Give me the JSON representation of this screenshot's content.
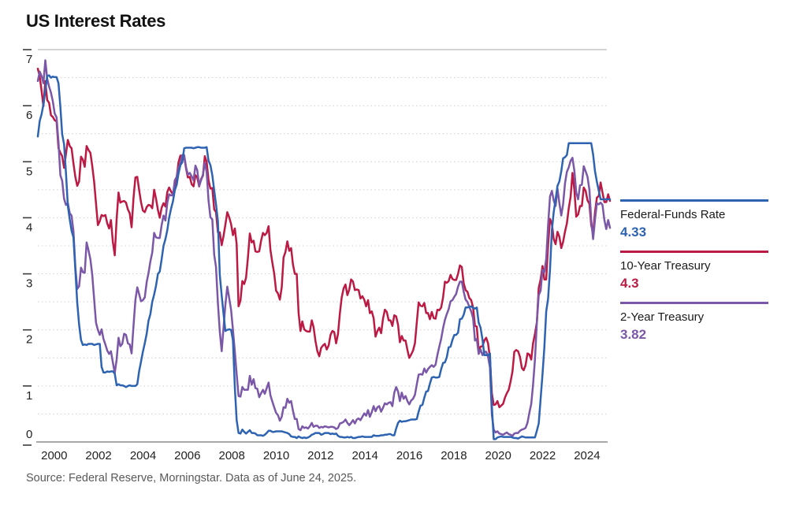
{
  "title": "US Interest Rates",
  "source": "Source: Federal Reserve, Morningstar. Data as of June 24, 2025.",
  "legend": {
    "entries": [
      {
        "label": "Federal-Funds Rate",
        "value": "4.33",
        "color": "#2E63B2"
      },
      {
        "label": "10-Year Treasury",
        "value": "4.3",
        "color": "#BB1A44"
      },
      {
        "label": "2-Year Treasury",
        "value": "3.82",
        "color": "#7B57A8"
      }
    ]
  },
  "chart_data": {
    "type": "line",
    "title": "US Interest Rates",
    "xlabel": "",
    "ylabel": "",
    "x_range": [
      2000.0,
      2025.45
    ],
    "ylim": [
      0,
      7
    ],
    "y_ticks": [
      7,
      6,
      5,
      4,
      3,
      2,
      1,
      0
    ],
    "x_ticks": [
      2000,
      2002,
      2004,
      2006,
      2008,
      2010,
      2012,
      2014,
      2016,
      2018,
      2020,
      2022,
      2024
    ],
    "grid": {
      "dotted_interval": 0.5,
      "top_solid_line_at": 7,
      "baseline_at": 0
    },
    "legend_position": "right",
    "x_start": 2000.0,
    "x_step": 0.0833333,
    "series": [
      {
        "name": "10-Year Treasury",
        "color": "#BB1A44",
        "values": [
          6.66,
          6.52,
          6.26,
          5.99,
          6.44,
          6.1,
          6.05,
          5.83,
          5.8,
          5.74,
          5.72,
          5.24,
          5.16,
          5.1,
          4.89,
          5.14,
          5.39,
          5.28,
          5.24,
          4.97,
          4.73,
          4.57,
          4.65,
          5.09,
          5.04,
          4.91,
          5.28,
          5.21,
          5.16,
          4.93,
          4.65,
          4.26,
          3.87,
          3.94,
          4.05,
          4.03,
          4.05,
          3.9,
          3.81,
          3.96,
          3.57,
          3.33,
          3.98,
          4.45,
          4.27,
          4.29,
          4.3,
          4.27,
          4.15,
          4.08,
          3.83,
          4.35,
          4.72,
          4.73,
          4.5,
          4.28,
          4.13,
          4.1,
          4.19,
          4.23,
          4.22,
          4.17,
          4.5,
          4.34,
          4.14,
          4.0,
          4.18,
          4.26,
          4.2,
          4.46,
          4.54,
          4.47,
          4.42,
          4.57,
          4.72,
          4.99,
          5.11,
          5.11,
          5.09,
          4.88,
          4.72,
          4.73,
          4.6,
          4.56,
          4.76,
          4.72,
          4.56,
          4.69,
          4.75,
          5.1,
          5.0,
          4.67,
          4.52,
          4.53,
          4.15,
          4.1,
          3.74,
          3.74,
          3.51,
          3.68,
          3.88,
          4.1,
          4.01,
          3.89,
          3.69,
          3.81,
          3.53,
          2.42,
          2.52,
          2.87,
          2.82,
          2.93,
          3.29,
          3.72,
          3.56,
          3.59,
          3.4,
          3.39,
          3.4,
          3.59,
          3.73,
          3.69,
          3.73,
          3.85,
          3.42,
          3.2,
          3.01,
          2.7,
          2.65,
          2.54,
          2.76,
          3.29,
          3.39,
          3.58,
          3.41,
          3.46,
          3.17,
          3.0,
          3.0,
          2.3,
          1.98,
          2.15,
          2.01,
          1.98,
          1.97,
          1.97,
          2.17,
          2.05,
          1.8,
          1.62,
          1.53,
          1.68,
          1.72,
          1.75,
          1.65,
          1.72,
          1.91,
          1.98,
          1.96,
          1.76,
          1.93,
          2.3,
          2.58,
          2.74,
          2.81,
          2.62,
          2.72,
          2.9,
          2.86,
          2.71,
          2.72,
          2.71,
          2.56,
          2.6,
          2.54,
          2.42,
          2.53,
          2.3,
          2.33,
          2.21,
          1.88,
          1.98,
          2.04,
          1.94,
          2.2,
          2.36,
          2.32,
          2.17,
          2.17,
          2.07,
          2.26,
          2.24,
          2.09,
          1.78,
          1.89,
          1.81,
          1.81,
          1.64,
          1.5,
          1.56,
          1.63,
          1.76,
          2.14,
          2.49,
          2.43,
          2.42,
          2.48,
          2.3,
          2.3,
          2.19,
          2.32,
          2.21,
          2.2,
          2.36,
          2.35,
          2.4,
          2.58,
          2.86,
          2.84,
          2.87,
          2.98,
          2.91,
          2.89,
          2.89,
          3.0,
          3.15,
          3.12,
          2.83,
          2.71,
          2.68,
          2.57,
          2.53,
          2.4,
          2.07,
          2.06,
          1.63,
          1.7,
          1.71,
          1.81,
          1.86,
          1.76,
          1.5,
          0.87,
          0.66,
          0.67,
          0.73,
          0.62,
          0.65,
          0.68,
          0.79,
          0.87,
          0.93,
          1.08,
          1.26,
          1.61,
          1.64,
          1.62,
          1.52,
          1.32,
          1.28,
          1.37,
          1.58,
          1.56,
          1.47,
          1.76,
          1.93,
          2.13,
          2.75,
          2.9,
          3.14,
          2.9,
          2.9,
          3.52,
          3.98,
          3.89,
          3.62,
          3.53,
          3.75,
          3.66,
          3.46,
          3.57,
          3.75,
          3.9,
          4.17,
          4.38,
          4.8,
          4.5,
          4.02,
          4.06,
          4.21,
          4.21,
          4.54,
          4.48,
          4.31,
          4.25,
          3.87,
          3.72,
          4.1,
          4.36,
          4.39,
          4.63,
          4.45,
          4.28,
          4.28,
          4.42,
          4.3
        ]
      },
      {
        "name": "2-Year Treasury",
        "color": "#7B57A8",
        "values": [
          6.44,
          6.61,
          6.53,
          6.4,
          6.81,
          6.48,
          6.34,
          6.23,
          6.08,
          5.86,
          5.79,
          5.35,
          4.76,
          4.66,
          4.34,
          4.23,
          4.26,
          4.08,
          4.04,
          3.76,
          3.12,
          2.73,
          2.78,
          3.11,
          3.03,
          3.02,
          3.56,
          3.42,
          3.26,
          2.99,
          2.56,
          2.13,
          2.0,
          1.91,
          2.01,
          1.84,
          1.74,
          1.63,
          1.57,
          1.62,
          1.42,
          1.23,
          1.47,
          1.86,
          1.71,
          1.75,
          1.93,
          1.91,
          1.76,
          1.74,
          1.58,
          2.07,
          2.53,
          2.76,
          2.64,
          2.51,
          2.53,
          2.58,
          2.85,
          3.01,
          3.22,
          3.38,
          3.73,
          3.65,
          3.64,
          3.64,
          3.87,
          4.04,
          3.95,
          4.27,
          4.42,
          4.4,
          4.4,
          4.67,
          4.73,
          4.89,
          4.97,
          5.12,
          5.12,
          4.9,
          4.77,
          4.8,
          4.74,
          4.67,
          4.93,
          4.85,
          4.57,
          4.67,
          4.77,
          4.98,
          4.82,
          4.31,
          4.01,
          3.97,
          3.34,
          3.12,
          2.48,
          1.97,
          1.62,
          2.05,
          2.45,
          2.77,
          2.57,
          2.36,
          2.0,
          1.61,
          1.21,
          0.82,
          0.81,
          0.98,
          0.93,
          0.93,
          0.93,
          1.18,
          1.02,
          1.12,
          0.96,
          0.95,
          0.8,
          0.87,
          0.93,
          0.86,
          0.96,
          1.06,
          0.83,
          0.72,
          0.62,
          0.52,
          0.48,
          0.38,
          0.45,
          0.62,
          0.61,
          0.77,
          0.7,
          0.73,
          0.56,
          0.41,
          0.41,
          0.23,
          0.21,
          0.28,
          0.25,
          0.26,
          0.24,
          0.28,
          0.34,
          0.27,
          0.29,
          0.29,
          0.25,
          0.27,
          0.26,
          0.28,
          0.27,
          0.26,
          0.27,
          0.27,
          0.26,
          0.23,
          0.25,
          0.33,
          0.34,
          0.36,
          0.4,
          0.34,
          0.3,
          0.34,
          0.39,
          0.33,
          0.4,
          0.42,
          0.39,
          0.45,
          0.51,
          0.47,
          0.57,
          0.45,
          0.53,
          0.64,
          0.55,
          0.62,
          0.64,
          0.54,
          0.61,
          0.69,
          0.67,
          0.7,
          0.71,
          0.64,
          0.88,
          0.98,
          0.9,
          0.73,
          0.88,
          0.77,
          0.82,
          0.73,
          0.67,
          0.74,
          0.77,
          0.84,
          1.03,
          1.2,
          1.21,
          1.2,
          1.31,
          1.24,
          1.3,
          1.34,
          1.37,
          1.34,
          1.38,
          1.55,
          1.7,
          1.84,
          2.03,
          2.18,
          2.28,
          2.37,
          2.51,
          2.53,
          2.59,
          2.64,
          2.77,
          2.86,
          2.86,
          2.68,
          2.54,
          2.5,
          2.41,
          2.33,
          2.21,
          1.81,
          1.84,
          1.57,
          1.65,
          1.55,
          1.61,
          1.61,
          1.52,
          1.33,
          0.49,
          0.22,
          0.17,
          0.19,
          0.15,
          0.14,
          0.13,
          0.15,
          0.17,
          0.14,
          0.13,
          0.11,
          0.15,
          0.16,
          0.16,
          0.2,
          0.22,
          0.23,
          0.25,
          0.34,
          0.52,
          0.68,
          1.02,
          1.47,
          2.13,
          2.62,
          2.7,
          3.07,
          3.03,
          3.27,
          3.87,
          4.38,
          4.48,
          4.31,
          4.21,
          4.52,
          4.26,
          4.04,
          4.24,
          4.61,
          4.82,
          4.9,
          5.02,
          5.07,
          4.84,
          4.45,
          4.33,
          4.58,
          4.59,
          4.92,
          4.83,
          4.73,
          4.5,
          3.96,
          3.62,
          3.97,
          4.26,
          4.24,
          4.27,
          4.23,
          3.96,
          3.8,
          3.96,
          3.82
        ]
      },
      {
        "name": "Federal-Funds Rate",
        "color": "#2E63B2",
        "values": [
          5.45,
          5.73,
          5.85,
          6.02,
          6.27,
          6.53,
          6.54,
          6.5,
          6.52,
          6.51,
          6.51,
          6.4,
          5.98,
          5.49,
          5.31,
          4.8,
          4.21,
          3.97,
          3.77,
          3.65,
          3.07,
          2.49,
          2.09,
          1.82,
          1.73,
          1.74,
          1.73,
          1.75,
          1.75,
          1.75,
          1.73,
          1.74,
          1.75,
          1.75,
          1.34,
          1.24,
          1.24,
          1.26,
          1.25,
          1.26,
          1.26,
          1.22,
          1.01,
          1.03,
          1.01,
          1.01,
          1.0,
          0.98,
          1.0,
          1.01,
          1.0,
          1.0,
          1.0,
          1.03,
          1.26,
          1.43,
          1.61,
          1.76,
          1.93,
          2.16,
          2.28,
          2.5,
          2.63,
          2.79,
          3.0,
          3.04,
          3.26,
          3.5,
          3.62,
          3.78,
          4.0,
          4.16,
          4.29,
          4.49,
          4.59,
          4.79,
          4.94,
          4.99,
          5.24,
          5.25,
          5.25,
          5.25,
          5.25,
          5.24,
          5.25,
          5.26,
          5.26,
          5.25,
          5.25,
          5.25,
          5.26,
          5.02,
          4.94,
          4.76,
          4.49,
          4.24,
          3.94,
          2.98,
          2.61,
          2.28,
          1.98,
          2.0,
          2.01,
          2.0,
          1.81,
          0.97,
          0.39,
          0.16,
          0.15,
          0.22,
          0.18,
          0.15,
          0.18,
          0.21,
          0.16,
          0.16,
          0.15,
          0.12,
          0.12,
          0.12,
          0.11,
          0.13,
          0.16,
          0.2,
          0.2,
          0.18,
          0.18,
          0.19,
          0.19,
          0.19,
          0.19,
          0.18,
          0.17,
          0.16,
          0.14,
          0.1,
          0.09,
          0.09,
          0.07,
          0.1,
          0.08,
          0.07,
          0.08,
          0.07,
          0.08,
          0.1,
          0.13,
          0.14,
          0.16,
          0.16,
          0.16,
          0.13,
          0.14,
          0.16,
          0.16,
          0.16,
          0.14,
          0.15,
          0.14,
          0.15,
          0.11,
          0.09,
          0.09,
          0.08,
          0.08,
          0.09,
          0.08,
          0.09,
          0.07,
          0.07,
          0.08,
          0.09,
          0.09,
          0.1,
          0.09,
          0.09,
          0.09,
          0.09,
          0.09,
          0.12,
          0.11,
          0.11,
          0.11,
          0.12,
          0.12,
          0.13,
          0.13,
          0.14,
          0.14,
          0.12,
          0.12,
          0.24,
          0.34,
          0.38,
          0.36,
          0.37,
          0.37,
          0.38,
          0.39,
          0.4,
          0.4,
          0.4,
          0.41,
          0.54,
          0.65,
          0.66,
          0.79,
          0.9,
          0.91,
          1.04,
          1.15,
          1.16,
          1.15,
          1.15,
          1.16,
          1.3,
          1.41,
          1.42,
          1.51,
          1.69,
          1.7,
          1.82,
          1.91,
          1.91,
          1.95,
          2.19,
          2.2,
          2.27,
          2.4,
          2.4,
          2.41,
          2.42,
          2.39,
          2.38,
          2.4,
          2.13,
          2.04,
          1.83,
          1.55,
          1.55,
          1.55,
          1.58,
          0.65,
          0.05,
          0.05,
          0.08,
          0.09,
          0.1,
          0.09,
          0.09,
          0.09,
          0.09,
          0.09,
          0.08,
          0.07,
          0.07,
          0.06,
          0.08,
          0.1,
          0.09,
          0.08,
          0.08,
          0.08,
          0.08,
          0.08,
          0.08,
          0.2,
          0.33,
          0.77,
          1.21,
          1.68,
          2.33,
          2.56,
          3.08,
          3.78,
          4.1,
          4.33,
          4.57,
          4.65,
          4.83,
          5.06,
          5.08,
          5.12,
          5.33,
          5.33,
          5.33,
          5.33,
          5.33,
          5.33,
          5.33,
          5.33,
          5.33,
          5.33,
          5.33,
          5.33,
          5.33,
          5.13,
          4.83,
          4.64,
          4.48,
          4.33,
          4.33,
          4.33,
          4.33,
          4.33,
          4.33
        ]
      }
    ]
  }
}
